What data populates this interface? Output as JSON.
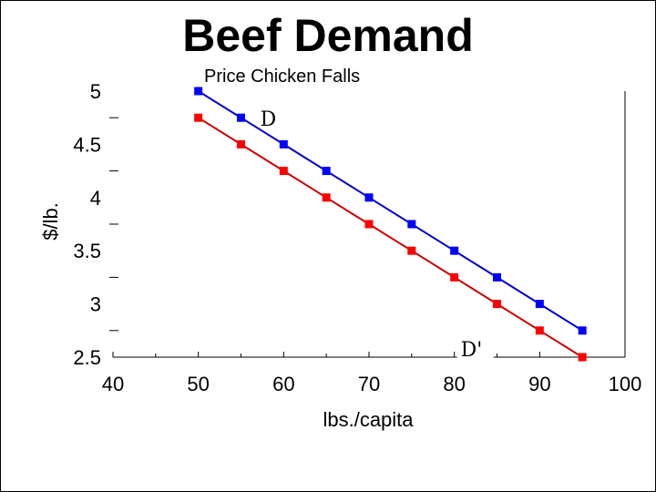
{
  "chart_data": {
    "type": "line",
    "title": "Beef Demand",
    "subtitle": "Price Chicken Falls",
    "xlabel": "lbs./capita",
    "ylabel": "$/lb.",
    "xlim": [
      40,
      100
    ],
    "ylim": [
      2.5,
      5
    ],
    "x_ticks": [
      "40",
      "50",
      "60",
      "70",
      "80",
      "90",
      "100"
    ],
    "y_ticks": [
      "5",
      "4.5",
      "4",
      "3.5",
      "3",
      "2.5"
    ],
    "grid": false,
    "series": [
      {
        "name": "D",
        "color": "#0000cc",
        "marker_color": "#0000ff",
        "x": [
          50,
          55,
          60,
          65,
          70,
          75,
          80,
          85,
          90,
          95
        ],
        "y": [
          5,
          4.75,
          4.5,
          4.25,
          4,
          3.75,
          3.5,
          3.25,
          3,
          2.75
        ]
      },
      {
        "name": "D'",
        "color": "#cc0000",
        "marker_color": "#ff0000",
        "x": [
          50,
          55,
          60,
          65,
          70,
          75,
          80,
          85,
          90,
          95
        ],
        "y": [
          4.75,
          4.5,
          4.25,
          4,
          3.75,
          3.5,
          3.25,
          3,
          2.75,
          2.5
        ]
      }
    ]
  }
}
